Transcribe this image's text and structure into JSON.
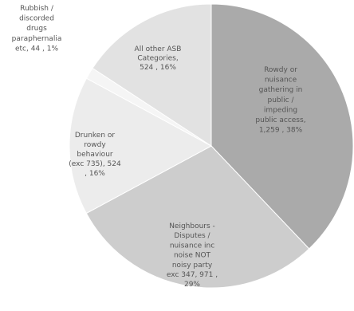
{
  "chart_data": {
    "type": "pie",
    "title": "",
    "start_angle_deg": 0,
    "direction": "clockwise",
    "slices": [
      {
        "label_lines": [
          "Rowdy or",
          "nuisance",
          "gathering in",
          "public /",
          "impeding",
          "public access,",
          "1,259 , 38%"
        ],
        "value": 1259,
        "percent": "38%",
        "color": "#aaaaaa",
        "text_color": "#ffffff"
      },
      {
        "label_lines": [
          "Neighbours -",
          "Disputes /",
          "nuisance inc",
          "noise NOT",
          "noisy party",
          "exc 347, 971 ,",
          "29%"
        ],
        "value": 971,
        "percent": "29%",
        "color": "#cdcdcd",
        "text_color": "#444444"
      },
      {
        "label_lines": [
          "Drunken or",
          "rowdy",
          "behaviour",
          "(exc 735), 524",
          ", 16%"
        ],
        "value": 524,
        "percent": "16%",
        "color": "#ececec",
        "text_color": "#555555"
      },
      {
        "label_lines": [
          "Rubbish /",
          "discorded",
          "drugs",
          "paraphernalia",
          "etc, 44 , 1%"
        ],
        "value": 44,
        "percent": "1%",
        "color": "#f5f5f5",
        "text_color": "#555555"
      },
      {
        "label_lines": [
          "All other ASB",
          "Categories,",
          "524 , 16%"
        ],
        "value": 524,
        "percent": "16%",
        "color": "#e2e2e2",
        "text_color": "#555555"
      }
    ]
  }
}
